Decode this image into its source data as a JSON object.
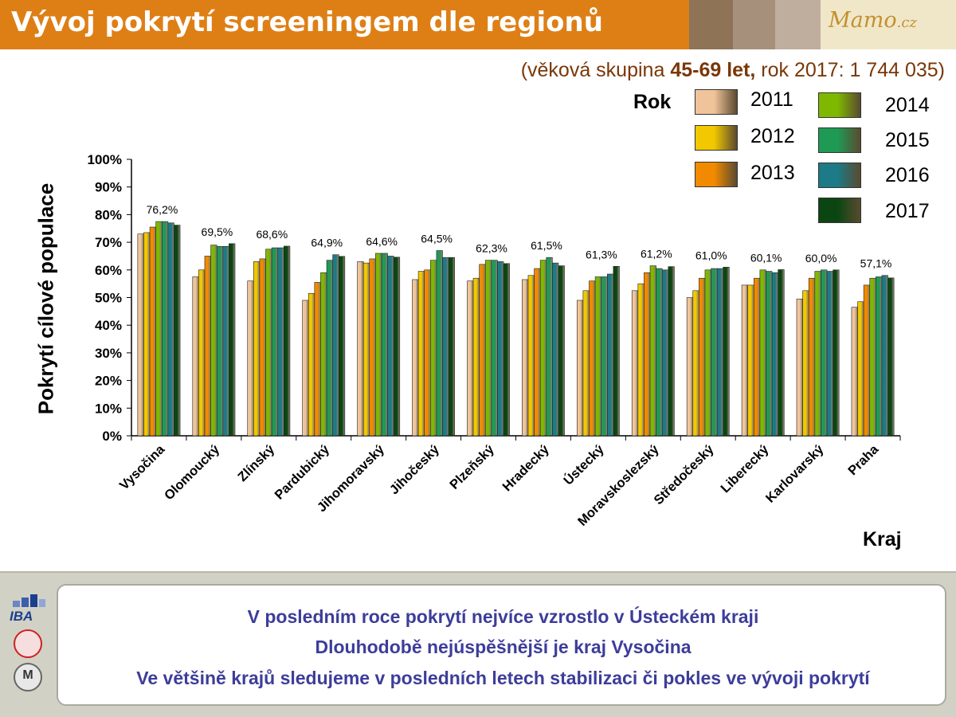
{
  "header": {
    "title": "Vývoj pokrytí screeningem dle regionů",
    "logo": "Mamo",
    "logo_suffix": ".cz"
  },
  "subtitle": {
    "prefix": "(věková skupina ",
    "bold": "45-69 let,",
    "suffix": " rok 2017: 1 744 035)"
  },
  "legend": {
    "title": "Rok",
    "items": [
      {
        "label": "2011",
        "color": "#f0c49a"
      },
      {
        "label": "2012",
        "color": "#f2c800"
      },
      {
        "label": "2013",
        "color": "#f28a00"
      },
      {
        "label": "2014",
        "color": "#7fb800"
      },
      {
        "label": "2015",
        "color": "#1f9a55"
      },
      {
        "label": "2016",
        "color": "#1c7b86"
      },
      {
        "label": "2017",
        "color": "#0b4612"
      }
    ]
  },
  "chart_data": {
    "type": "bar",
    "ylabel": "Pokrytí cílové populace",
    "xlabel": "Kraj",
    "ylim": [
      0,
      100
    ],
    "yticks": [
      "0%",
      "10%",
      "20%",
      "30%",
      "40%",
      "50%",
      "60%",
      "70%",
      "80%",
      "90%",
      "100%"
    ],
    "categories": [
      "Vysočina",
      "Olomoucký",
      "Zlínský",
      "Pardubický",
      "Jihomoravský",
      "Jihočeský",
      "Plzeňský",
      "Hradecký",
      "Ústecký",
      "Moravskoslezský",
      "Středočeský",
      "Liberecký",
      "Karlovarský",
      "Praha"
    ],
    "series": [
      {
        "name": "2011",
        "values": [
          73.0,
          57.5,
          56.0,
          49.0,
          63.0,
          56.5,
          56.0,
          56.5,
          49.0,
          52.5,
          50.0,
          54.5,
          49.5,
          46.5
        ]
      },
      {
        "name": "2012",
        "values": [
          73.5,
          60.0,
          63.0,
          51.5,
          62.5,
          59.5,
          57.0,
          58.0,
          52.5,
          55.0,
          52.5,
          54.5,
          52.5,
          48.5
        ]
      },
      {
        "name": "2013",
        "values": [
          75.5,
          65.0,
          64.0,
          55.5,
          64.0,
          60.0,
          62.0,
          60.5,
          56.0,
          59.0,
          57.0,
          57.0,
          57.0,
          54.5
        ]
      },
      {
        "name": "2014",
        "values": [
          77.5,
          69.0,
          67.5,
          59.0,
          66.0,
          63.5,
          63.5,
          63.5,
          57.5,
          61.5,
          60.0,
          60.0,
          59.5,
          57.0
        ]
      },
      {
        "name": "2015",
        "values": [
          77.5,
          68.5,
          68.0,
          63.5,
          66.0,
          67.0,
          63.5,
          64.5,
          57.5,
          60.5,
          60.5,
          59.5,
          60.0,
          57.5
        ]
      },
      {
        "name": "2016",
        "values": [
          77.0,
          68.5,
          68.0,
          65.5,
          65.0,
          64.5,
          63.0,
          62.5,
          58.5,
          60.0,
          60.5,
          59.0,
          59.5,
          58.0
        ]
      },
      {
        "name": "2017",
        "values": [
          76.2,
          69.5,
          68.6,
          64.9,
          64.6,
          64.5,
          62.3,
          61.5,
          61.3,
          61.2,
          61.0,
          60.1,
          60.0,
          57.1
        ]
      }
    ],
    "data_labels": [
      "76,2%",
      "69,5%",
      "68,6%",
      "64,9%",
      "64,6%",
      "64,5%",
      "62,3%",
      "61,5%",
      "61,3%",
      "61,2%",
      "61,0%",
      "60,1%",
      "60,0%",
      "57,1%"
    ]
  },
  "footer": {
    "logo_text": "IBA",
    "messages": [
      "V posledním roce pokrytí nejvíce vzrostlo v Ústeckém kraji",
      "Dlouhodobě nejúspěšnější je kraj Vysočina",
      "Ve většině krajů sledujeme v posledních letech stabilizaci či pokles ve vývoji pokrytí"
    ]
  }
}
